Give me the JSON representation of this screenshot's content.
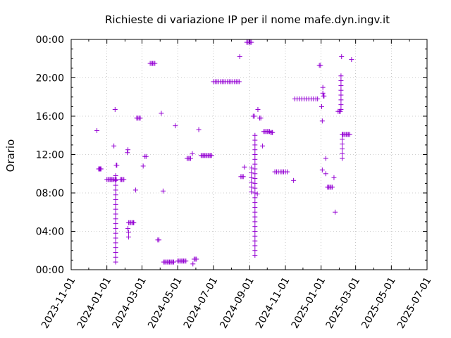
{
  "chart_data": {
    "type": "scatter",
    "title": "Richieste di variazione IP per il nome mafe.dyn.ingv.it",
    "ylabel": "Orario",
    "xlabel": "",
    "x_ticks": [
      "2023-11-01",
      "2024-01-01",
      "2024-03-01",
      "2024-05-01",
      "2024-07-01",
      "2024-09-01",
      "2024-11-01",
      "2025-01-01",
      "2025-03-01",
      "2025-05-01",
      "2025-07-01"
    ],
    "y_ticks": [
      "00:00",
      "04:00",
      "08:00",
      "12:00",
      "16:00",
      "20:00",
      "00:00"
    ],
    "xlim": [
      "2023-11-01",
      "2025-07-01"
    ],
    "ylim": [
      0,
      24
    ],
    "grid": true,
    "marker_color": "#9400d3",
    "series": [
      {
        "points": [
          [
            "2023-12-15",
            14.5
          ],
          [
            "2023-12-18",
            10.5
          ],
          [
            "2023-12-19",
            10.5
          ],
          [
            "2023-12-20",
            10.5
          ],
          [
            "2023-12-21",
            10.5
          ],
          [
            "2023-12-22",
            10.5
          ],
          [
            "2024-01-01",
            9.4
          ],
          [
            "2024-01-03",
            9.4
          ],
          [
            "2024-01-05",
            9.4
          ],
          [
            "2024-01-07",
            9.4
          ],
          [
            "2024-01-09",
            9.4
          ],
          [
            "2024-01-11",
            9.4
          ],
          [
            "2024-01-13",
            9.4
          ],
          [
            "2024-01-15",
            9.4
          ],
          [
            "2024-01-17",
            9.4
          ],
          [
            "2024-01-13",
            12.9
          ],
          [
            "2024-01-15",
            16.7
          ],
          [
            "2024-01-16",
            9.8
          ],
          [
            "2024-01-16",
            9.3
          ],
          [
            "2024-01-16",
            8.8
          ],
          [
            "2024-01-16",
            8.3
          ],
          [
            "2024-01-16",
            7.8
          ],
          [
            "2024-01-16",
            7.3
          ],
          [
            "2024-01-16",
            6.8
          ],
          [
            "2024-01-16",
            6.3
          ],
          [
            "2024-01-16",
            5.8
          ],
          [
            "2024-01-16",
            5.3
          ],
          [
            "2024-01-16",
            4.8
          ],
          [
            "2024-01-16",
            4.3
          ],
          [
            "2024-01-16",
            3.8
          ],
          [
            "2024-01-16",
            3.3
          ],
          [
            "2024-01-16",
            2.8
          ],
          [
            "2024-01-16",
            2.3
          ],
          [
            "2024-01-16",
            1.8
          ],
          [
            "2024-01-16",
            1.3
          ],
          [
            "2024-01-16",
            0.8
          ],
          [
            "2024-01-17",
            10.9
          ],
          [
            "2024-01-18",
            10.9
          ],
          [
            "2024-01-24",
            9.4
          ],
          [
            "2024-01-26",
            9.4
          ],
          [
            "2024-01-28",
            9.4
          ],
          [
            "2024-01-30",
            9.4
          ],
          [
            "2024-02-05",
            12.2
          ],
          [
            "2024-02-06",
            12.5
          ],
          [
            "2024-02-07",
            4.9
          ],
          [
            "2024-02-06",
            4.3
          ],
          [
            "2024-02-07",
            3.9
          ],
          [
            "2024-02-07",
            3.4
          ],
          [
            "2024-02-09",
            4.9
          ],
          [
            "2024-02-11",
            4.9
          ],
          [
            "2024-02-13",
            4.9
          ],
          [
            "2024-02-15",
            4.9
          ],
          [
            "2024-02-16",
            4.9
          ],
          [
            "2024-02-19",
            8.3
          ],
          [
            "2024-02-21",
            15.8
          ],
          [
            "2024-02-23",
            15.8
          ],
          [
            "2024-02-25",
            15.8
          ],
          [
            "2024-02-27",
            15.8
          ],
          [
            "2024-03-03",
            10.8
          ],
          [
            "2024-03-06",
            11.8
          ],
          [
            "2024-03-08",
            11.8
          ],
          [
            "2024-03-15",
            21.5
          ],
          [
            "2024-03-17",
            21.5
          ],
          [
            "2024-03-19",
            21.5
          ],
          [
            "2024-03-21",
            21.5
          ],
          [
            "2024-03-23",
            21.5
          ],
          [
            "2024-03-28",
            3.1
          ],
          [
            "2024-03-30",
            3.1
          ],
          [
            "2024-04-03",
            16.3
          ],
          [
            "2024-04-06",
            8.2
          ],
          [
            "2024-04-07",
            0.8
          ],
          [
            "2024-04-09",
            0.8
          ],
          [
            "2024-04-11",
            0.8
          ],
          [
            "2024-04-13",
            0.8
          ],
          [
            "2024-04-15",
            0.8
          ],
          [
            "2024-04-17",
            0.8
          ],
          [
            "2024-04-19",
            0.8
          ],
          [
            "2024-04-21",
            0.8
          ],
          [
            "2024-04-23",
            0.8
          ],
          [
            "2024-04-24",
            0.8
          ],
          [
            "2024-04-27",
            15.0
          ],
          [
            "2024-05-01",
            0.9
          ],
          [
            "2024-05-03",
            0.9
          ],
          [
            "2024-05-05",
            0.9
          ],
          [
            "2024-05-07",
            0.9
          ],
          [
            "2024-05-09",
            0.9
          ],
          [
            "2024-05-11",
            0.9
          ],
          [
            "2024-05-13",
            0.9
          ],
          [
            "2024-05-15",
            0.9
          ],
          [
            "2024-05-17",
            11.6
          ],
          [
            "2024-05-19",
            11.6
          ],
          [
            "2024-05-21",
            11.6
          ],
          [
            "2024-05-23",
            11.6
          ],
          [
            "2024-05-26",
            12.1
          ],
          [
            "2024-05-27",
            0.6
          ],
          [
            "2024-05-29",
            1.1
          ],
          [
            "2024-05-31",
            1.1
          ],
          [
            "2024-06-02",
            1.1
          ],
          [
            "2024-06-06",
            14.6
          ],
          [
            "2024-06-10",
            11.9
          ],
          [
            "2024-06-12",
            11.9
          ],
          [
            "2024-06-14",
            11.9
          ],
          [
            "2024-06-16",
            11.9
          ],
          [
            "2024-06-18",
            11.9
          ],
          [
            "2024-06-20",
            11.9
          ],
          [
            "2024-06-22",
            11.9
          ],
          [
            "2024-06-24",
            11.9
          ],
          [
            "2024-06-26",
            11.9
          ],
          [
            "2024-06-28",
            11.9
          ],
          [
            "2024-07-01",
            19.6
          ],
          [
            "2024-07-04",
            19.6
          ],
          [
            "2024-07-07",
            19.6
          ],
          [
            "2024-07-10",
            19.6
          ],
          [
            "2024-07-13",
            19.6
          ],
          [
            "2024-07-16",
            19.6
          ],
          [
            "2024-07-19",
            19.6
          ],
          [
            "2024-07-22",
            19.6
          ],
          [
            "2024-07-25",
            19.6
          ],
          [
            "2024-07-28",
            19.6
          ],
          [
            "2024-07-31",
            19.6
          ],
          [
            "2024-08-03",
            19.6
          ],
          [
            "2024-08-06",
            19.6
          ],
          [
            "2024-08-09",
            19.6
          ],
          [
            "2024-08-12",
            19.6
          ],
          [
            "2024-08-14",
            19.6
          ],
          [
            "2024-08-15",
            22.2
          ],
          [
            "2024-08-17",
            9.7
          ],
          [
            "2024-08-19",
            9.7
          ],
          [
            "2024-08-21",
            9.7
          ],
          [
            "2024-08-23",
            10.7
          ],
          [
            "2024-08-27",
            23.7
          ],
          [
            "2024-08-29",
            23.7
          ],
          [
            "2024-08-31",
            23.7
          ],
          [
            "2024-09-02",
            23.7
          ],
          [
            "2024-09-04",
            23.7
          ],
          [
            "2024-09-04",
            10.6
          ],
          [
            "2024-09-04",
            10.1
          ],
          [
            "2024-09-04",
            9.6
          ],
          [
            "2024-09-04",
            9.1
          ],
          [
            "2024-09-04",
            8.6
          ],
          [
            "2024-09-04",
            8.1
          ],
          [
            "2024-09-07",
            16.0
          ],
          [
            "2024-09-09",
            16.0
          ],
          [
            "2024-09-10",
            14.0
          ],
          [
            "2024-09-10",
            13.5
          ],
          [
            "2024-09-10",
            13.0
          ],
          [
            "2024-09-10",
            12.5
          ],
          [
            "2024-09-10",
            12.0
          ],
          [
            "2024-09-10",
            11.5
          ],
          [
            "2024-09-10",
            11.0
          ],
          [
            "2024-09-10",
            10.5
          ],
          [
            "2024-09-10",
            10.0
          ],
          [
            "2024-09-10",
            9.5
          ],
          [
            "2024-09-10",
            9.0
          ],
          [
            "2024-09-10",
            8.5
          ],
          [
            "2024-09-10",
            8.0
          ],
          [
            "2024-09-10",
            7.5
          ],
          [
            "2024-09-10",
            7.0
          ],
          [
            "2024-09-10",
            6.5
          ],
          [
            "2024-09-10",
            6.0
          ],
          [
            "2024-09-10",
            5.5
          ],
          [
            "2024-09-10",
            5.0
          ],
          [
            "2024-09-10",
            4.5
          ],
          [
            "2024-09-10",
            4.0
          ],
          [
            "2024-09-10",
            3.5
          ],
          [
            "2024-09-10",
            3.0
          ],
          [
            "2024-09-10",
            2.5
          ],
          [
            "2024-09-10",
            2.0
          ],
          [
            "2024-09-10",
            1.5
          ],
          [
            "2024-09-14",
            7.9
          ],
          [
            "2024-09-15",
            16.7
          ],
          [
            "2024-09-18",
            15.8
          ],
          [
            "2024-09-20",
            15.8
          ],
          [
            "2024-09-23",
            12.9
          ],
          [
            "2024-09-25",
            14.4
          ],
          [
            "2024-09-27",
            14.4
          ],
          [
            "2024-09-29",
            14.4
          ],
          [
            "2024-10-01",
            14.4
          ],
          [
            "2024-10-03",
            14.4
          ],
          [
            "2024-10-05",
            14.4
          ],
          [
            "2024-10-07",
            14.3
          ],
          [
            "2024-10-09",
            14.3
          ],
          [
            "2024-10-10",
            14.3
          ],
          [
            "2024-10-14",
            10.2
          ],
          [
            "2024-10-17",
            10.2
          ],
          [
            "2024-10-20",
            10.2
          ],
          [
            "2024-10-23",
            10.2
          ],
          [
            "2024-10-26",
            10.2
          ],
          [
            "2024-10-29",
            10.2
          ],
          [
            "2024-11-01",
            10.2
          ],
          [
            "2024-11-04",
            10.2
          ],
          [
            "2024-11-15",
            9.3
          ],
          [
            "2024-11-17",
            17.8
          ],
          [
            "2024-11-21",
            17.8
          ],
          [
            "2024-11-25",
            17.8
          ],
          [
            "2024-11-29",
            17.8
          ],
          [
            "2024-12-03",
            17.8
          ],
          [
            "2024-12-07",
            17.8
          ],
          [
            "2024-12-11",
            17.8
          ],
          [
            "2024-12-15",
            17.8
          ],
          [
            "2024-12-19",
            17.8
          ],
          [
            "2024-12-23",
            17.8
          ],
          [
            "2024-12-26",
            17.8
          ],
          [
            "2024-12-29",
            21.3
          ],
          [
            "2024-12-31",
            21.3
          ],
          [
            "2025-01-02",
            17.0
          ],
          [
            "2025-01-03",
            15.5
          ],
          [
            "2025-01-03",
            10.4
          ],
          [
            "2025-01-04",
            19.0
          ],
          [
            "2025-01-04",
            18.4
          ],
          [
            "2025-01-05",
            18.1
          ],
          [
            "2025-01-06",
            18.1
          ],
          [
            "2025-01-09",
            11.6
          ],
          [
            "2025-01-09",
            10.0
          ],
          [
            "2025-01-12",
            8.6
          ],
          [
            "2025-01-14",
            8.6
          ],
          [
            "2025-01-16",
            8.6
          ],
          [
            "2025-01-18",
            8.6
          ],
          [
            "2025-01-20",
            8.6
          ],
          [
            "2025-01-23",
            9.6
          ],
          [
            "2025-01-25",
            6.0
          ],
          [
            "2025-01-30",
            16.5
          ],
          [
            "2025-02-01",
            16.5
          ],
          [
            "2025-02-03",
            16.5
          ],
          [
            "2025-02-04",
            20.2
          ],
          [
            "2025-02-04",
            19.7
          ],
          [
            "2025-02-04",
            19.2
          ],
          [
            "2025-02-04",
            18.7
          ],
          [
            "2025-02-04",
            18.2
          ],
          [
            "2025-02-04",
            17.7
          ],
          [
            "2025-02-04",
            17.2
          ],
          [
            "2025-02-04",
            16.7
          ],
          [
            "2025-02-05",
            22.2
          ],
          [
            "2025-02-06",
            14.1
          ],
          [
            "2025-02-06",
            13.6
          ],
          [
            "2025-02-06",
            13.1
          ],
          [
            "2025-02-06",
            12.6
          ],
          [
            "2025-02-06",
            12.1
          ],
          [
            "2025-02-06",
            11.6
          ],
          [
            "2025-02-07",
            14.1
          ],
          [
            "2025-02-09",
            14.1
          ],
          [
            "2025-02-11",
            14.1
          ],
          [
            "2025-02-13",
            14.1
          ],
          [
            "2025-02-15",
            14.1
          ],
          [
            "2025-02-17",
            14.1
          ],
          [
            "2025-02-19",
            14.1
          ],
          [
            "2025-02-22",
            21.9
          ]
        ]
      }
    ]
  }
}
